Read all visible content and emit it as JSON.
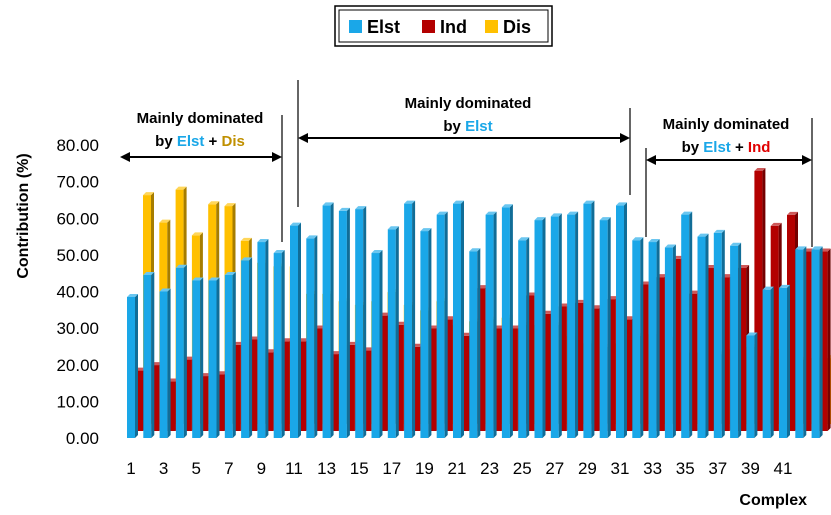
{
  "chart_data": {
    "type": "bar",
    "xlabel": "Complex",
    "ylabel": "Contribution (%)",
    "ylim": [
      0,
      80
    ],
    "y_ticks": [
      "0.00",
      "10.00",
      "20.00",
      "30.00",
      "40.00",
      "50.00",
      "60.00",
      "70.00",
      "80.00"
    ],
    "x_tick_labels": [
      "1",
      "3",
      "5",
      "7",
      "9",
      "11",
      "13",
      "15",
      "17",
      "19",
      "21",
      "23",
      "25",
      "27",
      "29",
      "31",
      "33",
      "35",
      "37",
      "39",
      "41"
    ],
    "legend_position": "top-center",
    "categories": [
      1,
      2,
      3,
      4,
      5,
      6,
      7,
      8,
      9,
      10,
      11,
      12,
      13,
      14,
      15,
      16,
      17,
      18,
      19,
      20,
      21,
      22,
      23,
      24,
      25,
      26,
      27,
      28,
      29,
      30,
      31,
      32,
      33,
      34,
      35,
      36,
      37,
      38,
      39,
      40,
      41,
      42,
      43
    ],
    "series": [
      {
        "name": "Elst",
        "color": "#1AA7E8",
        "values": [
          38.5,
          44.5,
          40.0,
          46.5,
          43.0,
          43.0,
          44.5,
          48.5,
          53.5,
          50.5,
          58.0,
          54.5,
          63.5,
          62.0,
          62.5,
          50.5,
          57.0,
          64.0,
          56.5,
          61.0,
          64.0,
          51.0,
          61.0,
          63.0,
          54.0,
          59.5,
          60.5,
          61.0,
          64.0,
          59.5,
          63.5,
          54.0,
          53.5,
          52.0,
          61.0,
          55.0,
          56.0,
          52.5,
          28.0,
          40.5,
          41.0,
          51.5,
          51.5
        ]
      },
      {
        "name": "Ind",
        "color": "#B30000",
        "values": [
          16.5,
          18.0,
          13.5,
          19.5,
          15.0,
          15.5,
          23.5,
          25.0,
          21.5,
          24.5,
          24.5,
          28.0,
          21.0,
          23.5,
          22.0,
          31.5,
          29.0,
          23.0,
          28.0,
          30.5,
          26.0,
          39.0,
          28.0,
          28.0,
          37.0,
          32.0,
          34.0,
          35.0,
          33.5,
          36.0,
          30.5,
          40.0,
          42.0,
          47.0,
          37.5,
          44.5,
          42.0,
          44.5,
          71.0,
          56.0,
          59.0,
          49.0,
          49.0
        ]
      },
      {
        "name": "Dis",
        "color": "#FFC000",
        "values": [
          62.5,
          55.0,
          64.0,
          51.5,
          60.0,
          59.5,
          50.0,
          44.0,
          43.0,
          43.0,
          35.5,
          35.5,
          33.5,
          32.5,
          33.5,
          36.0,
          32.5,
          31.0,
          33.5,
          27.0,
          28.0,
          28.5,
          29.0,
          27.0,
          27.0,
          27.0,
          24.0,
          22.0,
          21.0,
          22.0,
          24.0,
          24.5,
          23.0,
          19.5,
          19.5,
          19.0,
          20.5,
          21.0,
          18.5,
          20.5,
          17.5,
          18.0,
          18.0
        ]
      }
    ],
    "annotations": [
      {
        "lines": [
          [
            {
              "t": "Mainly dominated",
              "c": "#000000"
            }
          ],
          [
            {
              "t": "by ",
              "c": "#000000"
            },
            {
              "t": "Elst",
              "c": "#1AA7E8"
            },
            {
              "t": " + ",
              "c": "#000000"
            },
            {
              "t": "Dis",
              "c": "#C09000"
            }
          ]
        ],
        "from": 1,
        "to": 10
      },
      {
        "lines": [
          [
            {
              "t": "Mainly dominated",
              "c": "#000000"
            }
          ],
          [
            {
              "t": "by ",
              "c": "#000000"
            },
            {
              "t": "Elst",
              "c": "#1AA7E8"
            }
          ]
        ],
        "from": 11,
        "to": 31
      },
      {
        "lines": [
          [
            {
              "t": "Mainly dominated",
              "c": "#000000"
            }
          ],
          [
            {
              "t": "by ",
              "c": "#000000"
            },
            {
              "t": "Elst",
              "c": "#1AA7E8"
            },
            {
              "t": " + ",
              "c": "#000000"
            },
            {
              "t": "Ind",
              "c": "#E00000"
            }
          ]
        ],
        "from": 32,
        "to": 43
      }
    ]
  }
}
